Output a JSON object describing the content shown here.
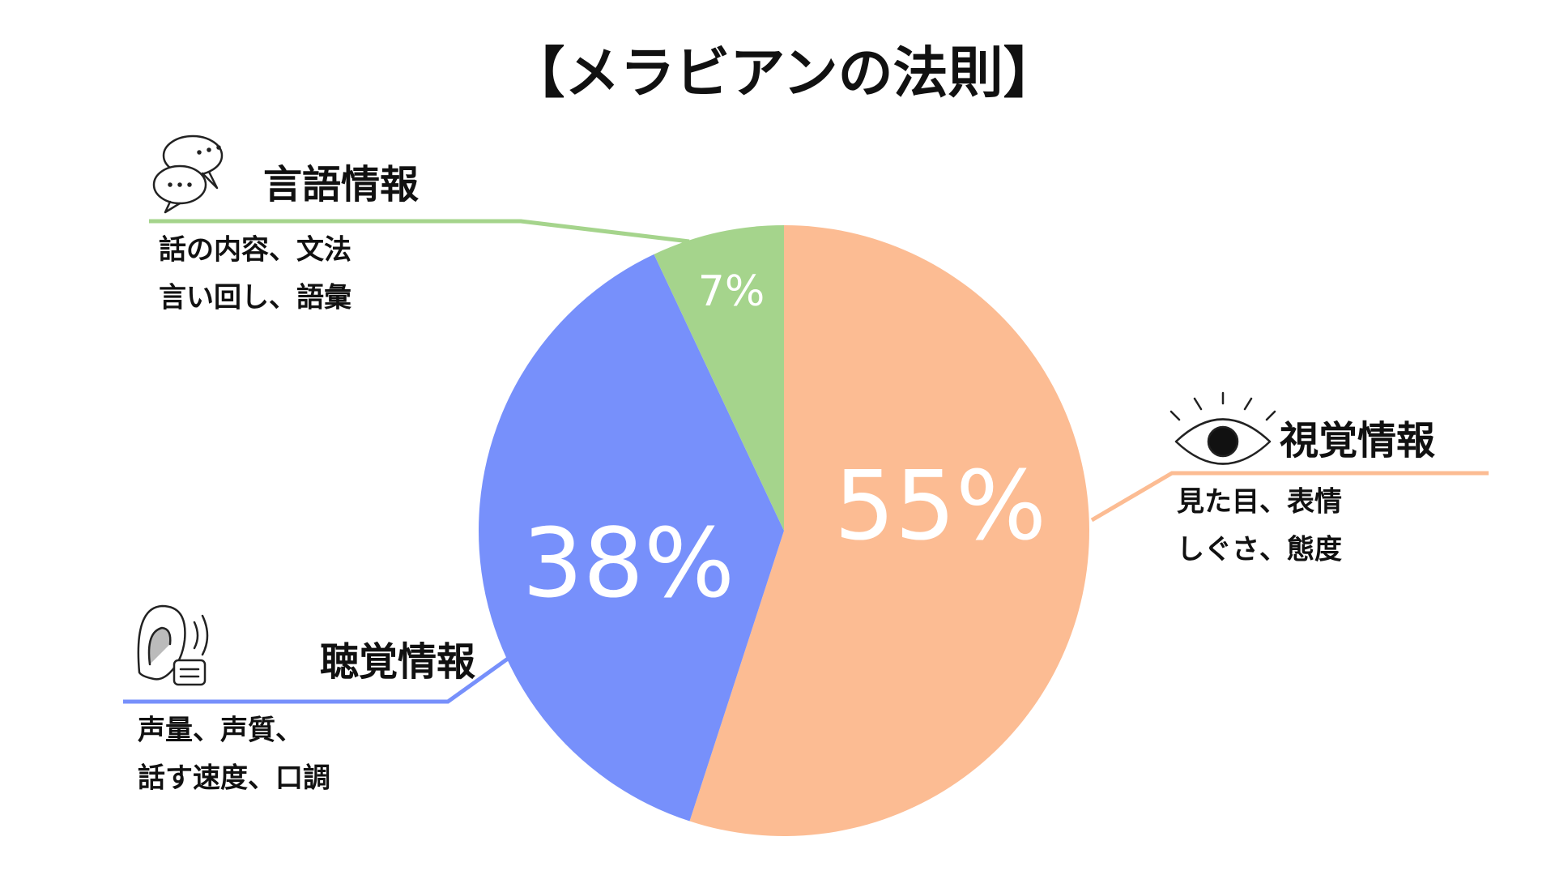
{
  "chart_data": {
    "type": "pie",
    "title": "【メラビアンの法則】",
    "categories": [
      "視覚情報",
      "聴覚情報",
      "言語情報"
    ],
    "values": [
      55,
      38,
      7
    ],
    "value_labels": [
      "55%",
      "38%",
      "7%"
    ],
    "colors": [
      "#fcbc93",
      "#7790fb",
      "#a5d48c"
    ],
    "descriptions": [
      [
        "見た目、表情",
        "しぐさ、態度"
      ],
      [
        "声量、声質、",
        "話す速度、口調"
      ],
      [
        "話の内容、文法",
        "言い回し、語彙"
      ]
    ]
  }
}
